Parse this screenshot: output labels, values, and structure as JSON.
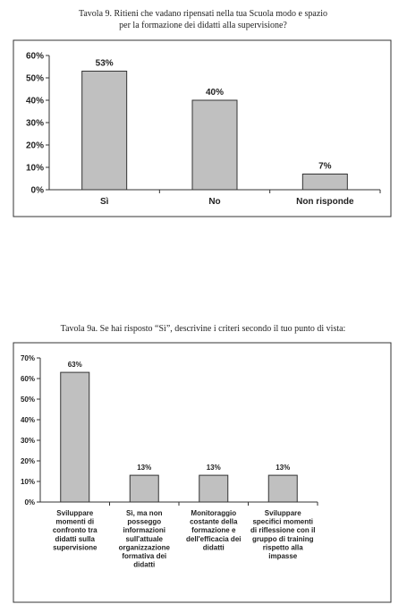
{
  "chart_data": [
    {
      "type": "bar",
      "title": [
        "Tavola 9. Ritieni che vadano ripensati nella tua Scuola modo e spazio",
        "per la formazione dei didatti alla supervisione?"
      ],
      "categories": [
        "Sì",
        "No",
        "Non risponde"
      ],
      "values": [
        53,
        40,
        7
      ],
      "value_labels": [
        "53%",
        "40%",
        "7%"
      ],
      "color": "#c0c0c0",
      "ylim": [
        0,
        60
      ],
      "yticks": [
        {
          "value": 0,
          "label": "0%"
        },
        {
          "value": 10,
          "label": "10%"
        },
        {
          "value": 20,
          "label": "20%"
        },
        {
          "value": 30,
          "label": "30%"
        },
        {
          "value": 40,
          "label": "40%"
        },
        {
          "value": 50,
          "label": "50%"
        },
        {
          "value": 60,
          "label": "60%"
        }
      ]
    },
    {
      "type": "bar",
      "title": [
        "Tavola 9a.  Se hai risposto “Sì”, descrivine i criteri secondo il tuo punto di vista:"
      ],
      "categories": [
        "Sviluppare\nmomenti di\nconfronto tra\ndidatti sulla\nsupervisione",
        "Sì, ma non\nposseggo\ninformazioni\nsull'attuale\norganizzazione\nformativa dei\ndidatti",
        "Monitoraggio\ncostante della\nformazione e\ndell'efficacia dei\ndidatti",
        "Sviluppare\nspecifici momenti\ndi riflessione con il\ngruppo di training\nrispetto alla\nimpasse"
      ],
      "values": [
        63,
        13,
        13,
        13
      ],
      "value_labels": [
        "63%",
        "13%",
        "13%",
        "13%"
      ],
      "color": "#c0c0c0",
      "ylim": [
        0,
        70
      ],
      "yticks": [
        {
          "value": 0,
          "label": "0%"
        },
        {
          "value": 10,
          "label": "10%"
        },
        {
          "value": 20,
          "label": "20%"
        },
        {
          "value": 30,
          "label": "30%"
        },
        {
          "value": 40,
          "label": "40%"
        },
        {
          "value": 50,
          "label": "50%"
        },
        {
          "value": 60,
          "label": "60%"
        },
        {
          "value": 70,
          "label": "70%"
        }
      ]
    }
  ]
}
